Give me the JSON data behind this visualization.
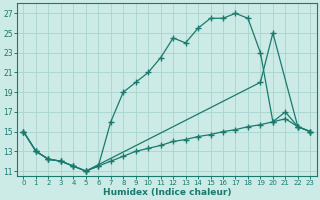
{
  "xlabel": "Humidex (Indice chaleur)",
  "bg_color": "#cceae6",
  "grid_color": "#aad4ce",
  "line_color": "#1a7a6e",
  "xlim": [
    -0.5,
    23.5
  ],
  "ylim": [
    10.5,
    28.0
  ],
  "yticks": [
    11,
    13,
    15,
    17,
    19,
    21,
    23,
    25,
    27
  ],
  "xticks": [
    0,
    1,
    2,
    3,
    4,
    5,
    6,
    7,
    8,
    9,
    10,
    11,
    12,
    13,
    14,
    15,
    16,
    17,
    18,
    19,
    20,
    21,
    22,
    23
  ],
  "main_x": [
    0,
    1,
    2,
    3,
    4,
    5,
    6,
    7,
    8,
    9,
    10,
    11,
    12,
    13,
    14,
    15,
    16,
    17,
    18,
    19,
    20,
    21,
    22,
    23
  ],
  "main_y": [
    15,
    13,
    12.2,
    12.0,
    11.5,
    11.0,
    11.5,
    16.0,
    19.0,
    20.0,
    21.0,
    22.5,
    24.5,
    24.0,
    25.5,
    26.5,
    26.5,
    27.0,
    26.5,
    23.0,
    16.0,
    17.0,
    15.5,
    15.0
  ],
  "env_upper_x": [
    0,
    1,
    2,
    3,
    4,
    5,
    19,
    20,
    22,
    23
  ],
  "env_upper_y": [
    15,
    13,
    12.2,
    12.0,
    11.5,
    11.0,
    20.0,
    25.0,
    15.5,
    15.0
  ],
  "env_lower_x": [
    0,
    1,
    2,
    3,
    4,
    5,
    6,
    7,
    8,
    9,
    10,
    11,
    12,
    13,
    14,
    15,
    16,
    17,
    18,
    19,
    20,
    21,
    22,
    23
  ],
  "env_lower_y": [
    15,
    13,
    12.2,
    12.0,
    11.5,
    11.0,
    11.5,
    12.0,
    12.5,
    13.0,
    13.3,
    13.6,
    14.0,
    14.2,
    14.5,
    14.7,
    15.0,
    15.2,
    15.5,
    15.7,
    16.0,
    16.3,
    15.5,
    15.0
  ]
}
